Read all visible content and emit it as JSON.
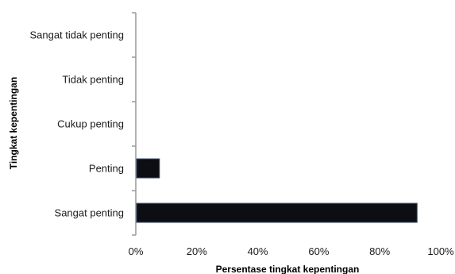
{
  "chart_data": {
    "type": "bar",
    "orientation": "horizontal",
    "categories": [
      "Sangat tidak penting",
      "Tidak penting",
      "Cukup penting",
      "Penting",
      "Sangat penting"
    ],
    "values": [
      0,
      0,
      0,
      7.5,
      92
    ],
    "xlabel": "Persentase tingkat kepentingan",
    "ylabel": "Tingkat kepentingan",
    "xlim": [
      0,
      100
    ],
    "xticks": [
      "0%",
      "20%",
      "40%",
      "60%",
      "80%",
      "100%"
    ],
    "grid": false,
    "legend": "none",
    "bar_color": "#0d0d14"
  }
}
